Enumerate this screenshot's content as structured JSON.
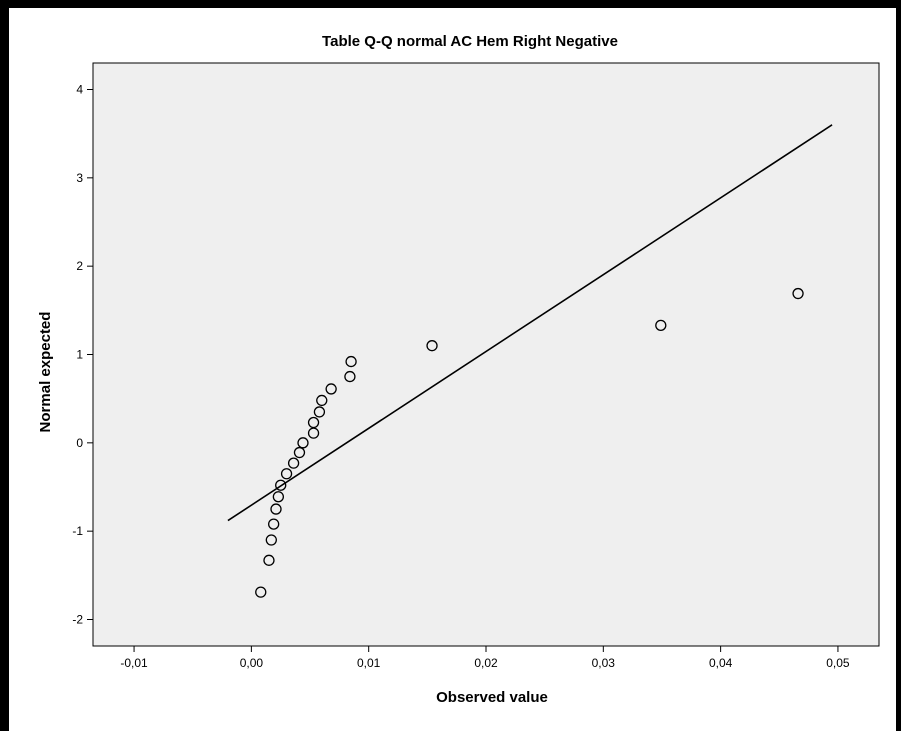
{
  "chart_data": {
    "type": "scatter",
    "title": "Table Q-Q normal AC Hem Right Negative",
    "xlabel": "Observed value",
    "ylabel": "Normal expected",
    "xlim": [
      -0.0135,
      0.0535
    ],
    "ylim": [
      -2.3,
      4.3
    ],
    "x_ticks": [
      -0.01,
      0.0,
      0.01,
      0.02,
      0.03,
      0.04,
      0.05
    ],
    "x_tick_labels": [
      "-0,01",
      "0,00",
      "0,01",
      "0,02",
      "0,03",
      "0,04",
      "0,05"
    ],
    "y_ticks": [
      -2,
      -1,
      0,
      1,
      2,
      3,
      4
    ],
    "y_tick_labels": [
      "-2",
      "-1",
      "0",
      "1",
      "2",
      "3",
      "4"
    ],
    "grid": false,
    "background": "#efefef",
    "point_style": "hollow-circle",
    "points": [
      {
        "x": 0.0008,
        "y": -1.69
      },
      {
        "x": 0.0015,
        "y": -1.33
      },
      {
        "x": 0.0017,
        "y": -1.1
      },
      {
        "x": 0.0019,
        "y": -0.92
      },
      {
        "x": 0.0021,
        "y": -0.75
      },
      {
        "x": 0.0023,
        "y": -0.61
      },
      {
        "x": 0.0025,
        "y": -0.48
      },
      {
        "x": 0.003,
        "y": -0.35
      },
      {
        "x": 0.0036,
        "y": -0.23
      },
      {
        "x": 0.0041,
        "y": -0.11
      },
      {
        "x": 0.0044,
        "y": 0.0
      },
      {
        "x": 0.0053,
        "y": 0.11
      },
      {
        "x": 0.0053,
        "y": 0.23
      },
      {
        "x": 0.0058,
        "y": 0.35
      },
      {
        "x": 0.006,
        "y": 0.48
      },
      {
        "x": 0.0068,
        "y": 0.61
      },
      {
        "x": 0.0084,
        "y": 0.75
      },
      {
        "x": 0.0085,
        "y": 0.92
      },
      {
        "x": 0.0154,
        "y": 1.1
      },
      {
        "x": 0.0349,
        "y": 1.33
      },
      {
        "x": 0.0466,
        "y": 1.69
      }
    ],
    "reference_line": {
      "x": [
        -0.002,
        0.0495
      ],
      "y": [
        -0.88,
        3.6
      ]
    }
  }
}
